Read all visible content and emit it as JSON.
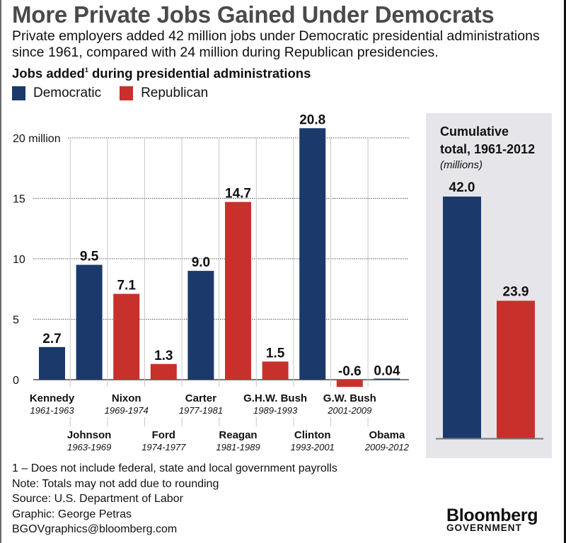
{
  "header": {
    "title": "More Private Jobs Gained Under Democrats",
    "subtitle": "Private employers added 42 million jobs under Democratic presidential administrations since 1961, compared with 24 million during Republican presidencies.",
    "chart_heading": "Jobs added",
    "chart_heading_sup": "1",
    "chart_heading_rest": " during presidential administrations"
  },
  "legend": [
    {
      "label": "Democratic",
      "color": "#1b3a6b"
    },
    {
      "label": "Republican",
      "color": "#c8312b"
    }
  ],
  "colors": {
    "Democratic": "#1b3a6b",
    "Republican": "#c8312b",
    "panel_bg": "#e6e6ea",
    "title": "#4a4a4a"
  },
  "chart_data": [
    {
      "type": "bar",
      "title": "Jobs added during presidential administrations",
      "xlabel": "",
      "ylabel": "",
      "ylim": [
        -1,
        21
      ],
      "yticks": [
        0,
        5,
        10,
        15,
        20
      ],
      "ytick_labels": [
        "0",
        "5",
        "10",
        "15",
        "20 million"
      ],
      "grid": true,
      "legend": "top-left",
      "categories": [
        "Kennedy",
        "Johnson",
        "Nixon",
        "Ford",
        "Carter",
        "Reagan",
        "G.H.W. Bush",
        "Clinton",
        "G.W. Bush",
        "Obama"
      ],
      "terms": [
        "1961-1963",
        "1963-1969",
        "1969-1974",
        "1974-1977",
        "1977-1981",
        "1981-1989",
        "1989-1993",
        "1993-2001",
        "2001-2009",
        "2009-2012"
      ],
      "party": [
        "Democratic",
        "Democratic",
        "Republican",
        "Republican",
        "Democratic",
        "Republican",
        "Republican",
        "Democratic",
        "Republican",
        "Democratic"
      ],
      "values": [
        2.7,
        9.5,
        7.1,
        1.3,
        9.0,
        14.7,
        1.5,
        20.8,
        -0.6,
        0.04
      ],
      "value_labels": [
        "2.7",
        "9.5",
        "7.1",
        "1.3",
        "9.0",
        "14.7",
        "1.5",
        "20.8",
        "-0.6",
        "0.04"
      ]
    },
    {
      "type": "bar",
      "title": "Cumulative total, 1961-2012",
      "subtitle": "(millions)",
      "categories": [
        "Democratic",
        "Republican"
      ],
      "values": [
        42.0,
        23.9
      ],
      "value_labels": [
        "42.0",
        "23.9"
      ],
      "ylim": [
        0,
        46
      ]
    }
  ],
  "panel": {
    "title_line1": "Cumulative",
    "title_line2": "total, 1961-2012",
    "unit": "(millions)"
  },
  "footer": {
    "lines": [
      "1 – Does not include federal, state and local government payrolls",
      "Note: Totals may not add due to rounding",
      "Source: U.S. Department of Labor",
      "Graphic: George Petras",
      "BGOVgraphics@bloomberg.com"
    ]
  },
  "logo": {
    "line1": "Bloomberg",
    "line2": "GOVERNMENT"
  }
}
